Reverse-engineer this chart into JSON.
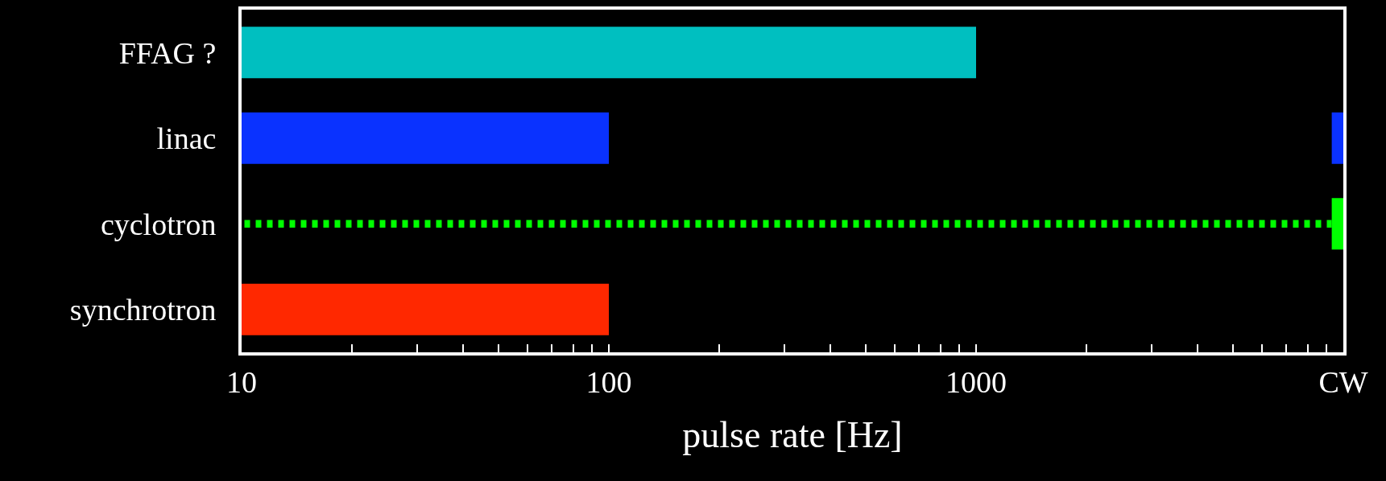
{
  "chart_data": {
    "type": "bar",
    "orientation": "horizontal",
    "log": "x",
    "xlabel": "pulse rate [Hz]",
    "categories": [
      "FFAG ?",
      "linac",
      "cyclotron",
      "synchrotron"
    ],
    "series": [
      {
        "colors": [
          "#00bfc0",
          "#0a32ff",
          "#00ff00",
          "#ff2800"
        ],
        "values": [
          1000,
          100,
          null,
          100
        ]
      },
      {
        "colors": [
          "#00bfc0",
          "#0a32ff",
          "#00ff00",
          "#ff2800"
        ],
        "base": [
          null,
          9300,
          9300,
          null
        ],
        "values": [
          null,
          700,
          700,
          null
        ]
      },
      {
        "line_style": "dotted",
        "color": "#00ff00",
        "base": [
          null,
          null,
          10,
          null
        ],
        "values": [
          null,
          null,
          9290,
          null
        ]
      }
    ],
    "xlim": [
      10,
      10000
    ],
    "xticks": [
      10,
      {
        "value": 20,
        "label": null
      },
      {
        "value": 30,
        "label": null
      },
      {
        "value": 40,
        "label": null
      },
      {
        "value": 50,
        "label": null
      },
      {
        "value": 60,
        "label": null
      },
      {
        "value": 70,
        "label": null
      },
      {
        "value": 80,
        "label": null
      },
      {
        "value": 90,
        "label": null
      },
      100,
      {
        "value": 200,
        "label": null
      },
      {
        "value": 300,
        "label": null
      },
      {
        "value": 400,
        "label": null
      },
      {
        "value": 500,
        "label": null
      },
      {
        "value": 600,
        "label": null
      },
      {
        "value": 700,
        "label": null
      },
      {
        "value": 800,
        "label": null
      },
      {
        "value": 900,
        "label": null
      },
      1000,
      {
        "value": 2000,
        "label": null
      },
      {
        "value": 3000,
        "label": null
      },
      {
        "value": 4000,
        "label": null
      },
      {
        "value": 5000,
        "label": null
      },
      {
        "value": 6000,
        "label": null
      },
      {
        "value": 7000,
        "label": null
      },
      {
        "value": 8000,
        "label": null
      },
      {
        "value": 9000,
        "label": null
      },
      {
        "value": 10000,
        "label": "CW"
      }
    ],
    "grid": false
  }
}
